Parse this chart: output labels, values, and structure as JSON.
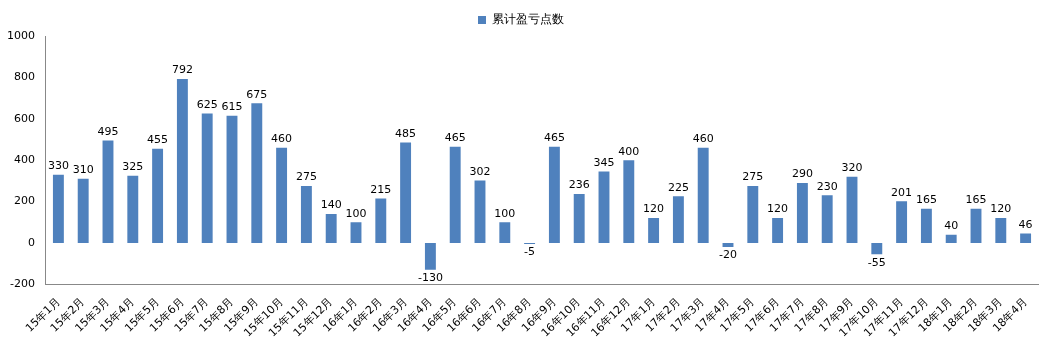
{
  "chart_data": {
    "type": "bar",
    "categories": [
      "15年1月",
      "15年2月",
      "15年3月",
      "15年4月",
      "15年5月",
      "15年6月",
      "15年7月",
      "15年8月",
      "15年9月",
      "15年10月",
      "15年11月",
      "15年12月",
      "16年1月",
      "16年2月",
      "16年3月",
      "16年4月",
      "16年5月",
      "16年6月",
      "16年7月",
      "16年8月",
      "16年9月",
      "16年10月",
      "16年11月",
      "16年12月",
      "17年1月",
      "17年2月",
      "17年3月",
      "17年4月",
      "17年5月",
      "17年6月",
      "17年7月",
      "17年8月",
      "17年9月",
      "17年10月",
      "17年11月",
      "17年12月",
      "18年1月",
      "18年2月",
      "18年3月",
      "18年4月"
    ],
    "series": [
      {
        "name": "累计盈亏点数",
        "color": "#4f81bd",
        "values": [
          330,
          310,
          495,
          325,
          455,
          792,
          625,
          615,
          675,
          460,
          275,
          140,
          100,
          215,
          485,
          -130,
          465,
          302,
          100,
          -5,
          465,
          236,
          345,
          400,
          120,
          225,
          460,
          -20,
          275,
          120,
          290,
          230,
          320,
          -55,
          201,
          165,
          40,
          165,
          120,
          46
        ]
      }
    ],
    "ylim": [
      -200,
      1000
    ],
    "yticks": [
      -200,
      0,
      200,
      400,
      600,
      800,
      1000
    ],
    "grid": false,
    "legend": "top",
    "data_labels": true
  }
}
